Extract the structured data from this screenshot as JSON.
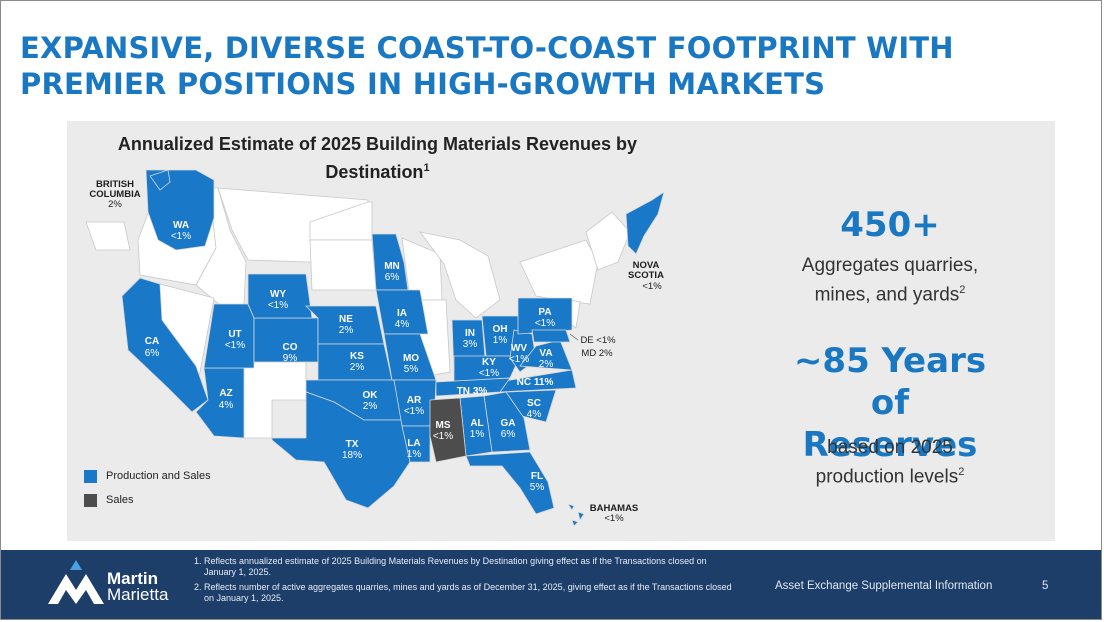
{
  "title": "EXPANSIVE, DIVERSE COAST-TO-COAST FOOTPRINT WITH PREMIER POSITIONS IN HIGH-GROWTH MARKETS",
  "map": {
    "title": "Annualized Estimate of 2025 Building Materials Revenues by Destination",
    "title_sup": "1",
    "colors": {
      "production_and_sales": "#1a78c8",
      "sales": "#4d4d4d",
      "other_state": "#ffffff",
      "border": "#c8c8c8"
    },
    "states": [
      {
        "code": "WA",
        "value": "<1%"
      },
      {
        "code": "CA",
        "value": "6%"
      },
      {
        "code": "AZ",
        "value": "4%"
      },
      {
        "code": "UT",
        "value": "<1%"
      },
      {
        "code": "CO",
        "value": "9%"
      },
      {
        "code": "WY",
        "value": "<1%"
      },
      {
        "code": "NE",
        "value": "2%"
      },
      {
        "code": "KS",
        "value": "2%"
      },
      {
        "code": "OK",
        "value": "2%"
      },
      {
        "code": "TX",
        "value": "18%"
      },
      {
        "code": "MN",
        "value": "6%"
      },
      {
        "code": "IA",
        "value": "4%"
      },
      {
        "code": "MO",
        "value": "5%"
      },
      {
        "code": "AR",
        "value": "<1%"
      },
      {
        "code": "LA",
        "value": "1%"
      },
      {
        "code": "MS",
        "value": "<1%"
      },
      {
        "code": "IN",
        "value": "3%"
      },
      {
        "code": "OH",
        "value": "1%"
      },
      {
        "code": "KY",
        "value": "<1%"
      },
      {
        "code": "WV",
        "value": "<1%"
      },
      {
        "code": "PA",
        "value": "<1%"
      },
      {
        "code": "VA",
        "value": "2%"
      },
      {
        "code": "NC",
        "value": "11%"
      },
      {
        "code": "TN",
        "value": "3%"
      },
      {
        "code": "SC",
        "value": "4%"
      },
      {
        "code": "GA",
        "value": "6%"
      },
      {
        "code": "AL",
        "value": "1%"
      },
      {
        "code": "FL",
        "value": "5%"
      }
    ],
    "external": {
      "british_columbia": {
        "name_1": "BRITISH",
        "name_2": "COLUMBIA",
        "value": "2%"
      },
      "nova_scotia": {
        "name_1": "NOVA",
        "name_2": "SCOTIA",
        "value": "<1%"
      },
      "bahamas": {
        "name": "BAHAMAS",
        "value": "<1%"
      },
      "de": "DE <1%",
      "md": "MD 2%"
    },
    "legend": [
      {
        "label": "Production and Sales",
        "color": "#1a78c8"
      },
      {
        "label": "Sales",
        "color": "#4d4d4d"
      }
    ]
  },
  "stats": {
    "quarries_value": "450+",
    "quarries_label_1": "Aggregates quarries,",
    "quarries_label_2": "mines, and yards",
    "quarries_sup": "2",
    "reserves_value_1": "~85 Years of",
    "reserves_value_2": "Reserves",
    "reserves_label_1": "based on 2025",
    "reserves_label_2": "production levels",
    "reserves_sup": "2"
  },
  "footer": {
    "notes": [
      "Reflects annualized estimate of 2025 Building Materials Revenues by Destination giving effect as if the Transactions closed on January 1, 2025.",
      "Reflects number of active aggregates quarries, mines and yards as of December 31, 2025, giving effect as if the Transactions closed on January 1, 2025."
    ],
    "logo_line_1": "Martin",
    "logo_line_2": "Marietta",
    "right_text": "Asset Exchange Supplemental Information",
    "page_number": "5"
  }
}
